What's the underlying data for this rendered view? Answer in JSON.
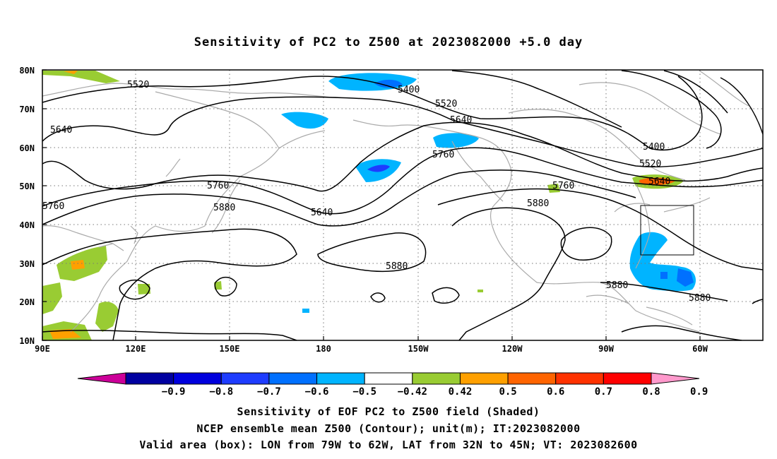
{
  "title": "Sensitivity of PC2 to Z500 at 2023082000 +5.0 day",
  "lat_labels": [
    "80N",
    "70N",
    "60N",
    "50N",
    "40N",
    "30N",
    "20N",
    "10N"
  ],
  "lon_labels": [
    "90E",
    "120E",
    "150E",
    "180",
    "150W",
    "120W",
    "90W",
    "60W"
  ],
  "contour_labels": [
    "5520",
    "5640",
    "5400",
    "5520",
    "5640",
    "5760",
    "5760",
    "5880",
    "5640",
    "5880",
    "5400",
    "5520",
    "5640",
    "5760",
    "5880",
    "5880",
    "5880",
    "5760"
  ],
  "colorbar": {
    "labels": [
      "-0.9",
      "-0.8",
      "-0.7",
      "-0.6",
      "-0.5",
      "-0.42",
      "0.42",
      "0.5",
      "0.6",
      "0.7",
      "0.8",
      "0.9"
    ],
    "colors": [
      "#cc0099",
      "#0000a0",
      "#0000dd",
      "#1e3cff",
      "#0070ff",
      "#00b4ff",
      "#ffffff",
      "#99cc33",
      "#ffa000",
      "#ff6400",
      "#ff3200",
      "#ff0000",
      "#ff99cc"
    ]
  },
  "footer": {
    "line1": "Sensitivity of EOF PC2 to Z500 field (Shaded)",
    "line2": "NCEP ensemble mean Z500 (Contour); unit(m); IT:2023082000",
    "line3": "Valid area (box): LON from 79W to 62W, LAT from 32N to 45N; VT: 2023082600"
  }
}
